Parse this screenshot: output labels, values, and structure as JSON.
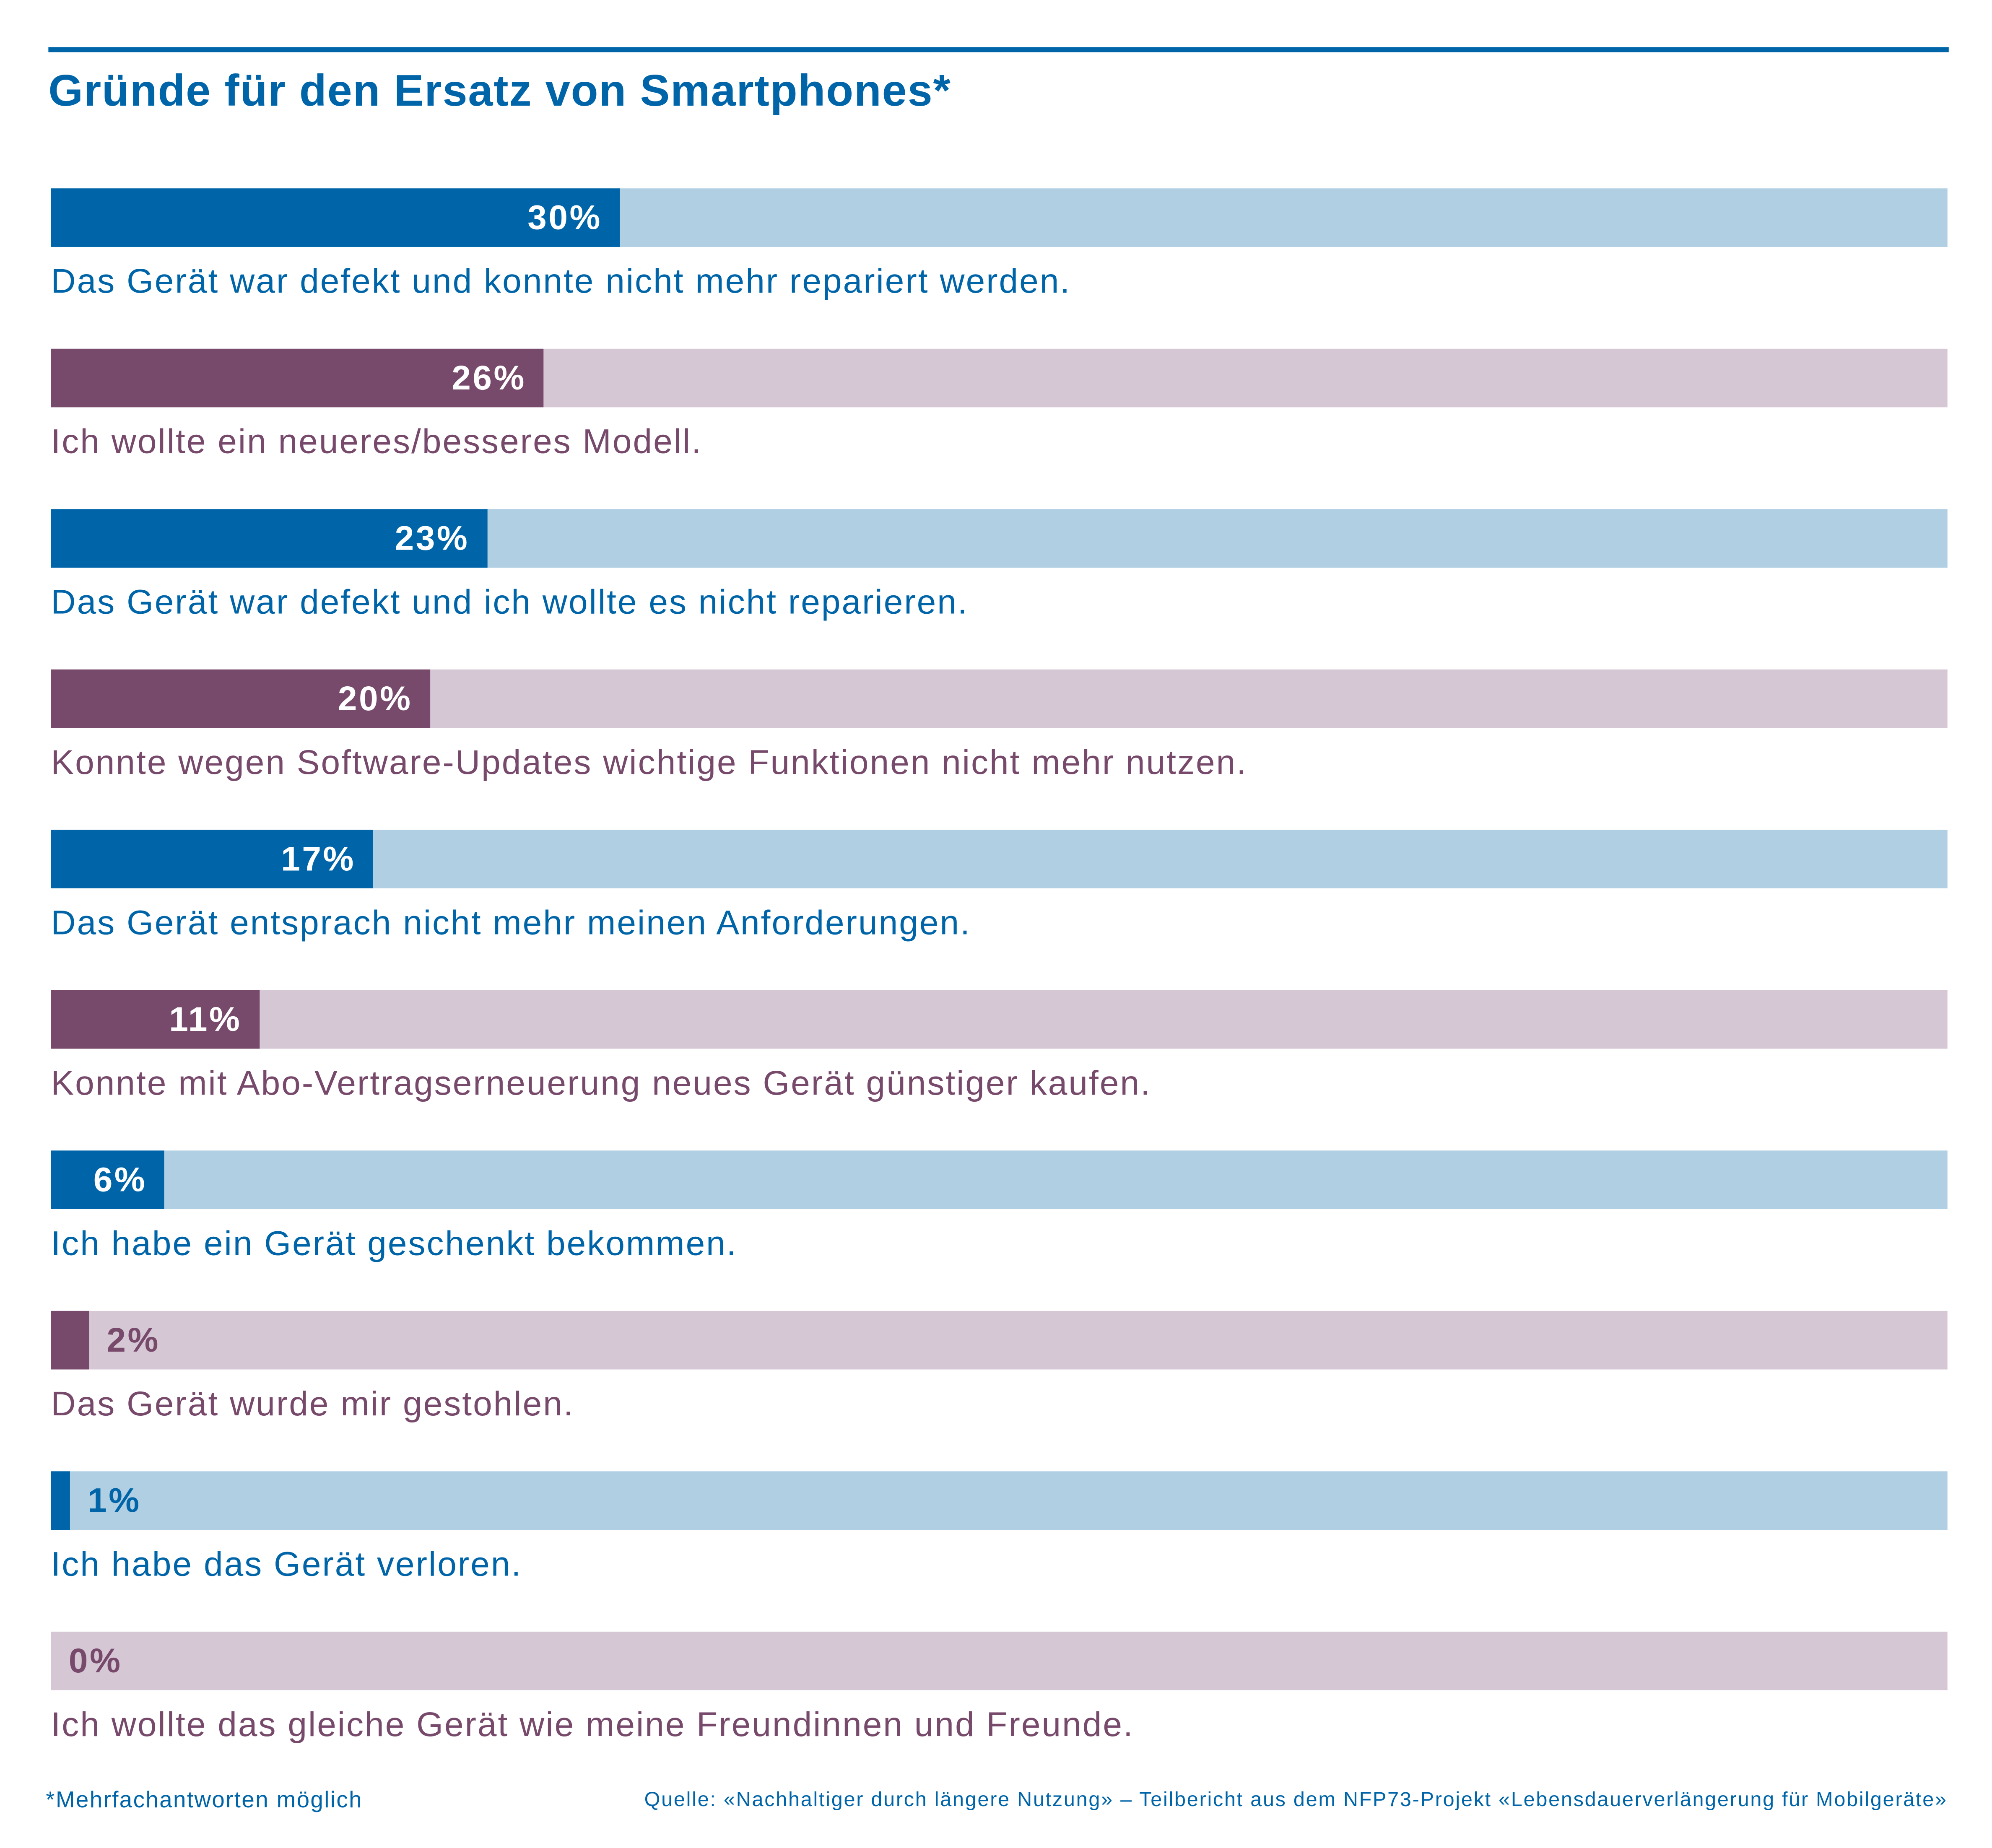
{
  "chart_data": {
    "type": "bar",
    "orientation": "horizontal",
    "title": "Gründe für den Ersatz von Smartphones*",
    "xlim": [
      0,
      100
    ],
    "grid": false,
    "categories": [
      "Das Gerät war defekt und konnte nicht mehr repariert werden.",
      "Ich wollte ein neueres/besseres Modell.",
      "Das Gerät war defekt und ich wollte es nicht reparieren.",
      "Konnte wegen Software-Updates wichtige Funktionen nicht mehr nutzen.",
      "Das Gerät entsprach nicht mehr meinen Anforderungen.",
      "Konnte mit Abo-Vertragserneuerung neues Gerät günstiger kaufen.",
      "Ich habe ein Gerät geschenkt bekommen.",
      "Das Gerät wurde mir gestohlen.",
      "Ich habe das Gerät verloren.",
      "Ich wollte das gleiche Gerät wie meine Freundinnen und Freunde."
    ],
    "values": [
      30,
      26,
      23,
      20,
      17,
      11,
      6,
      2,
      1,
      0
    ],
    "value_labels": [
      "30%",
      "26%",
      "23%",
      "20%",
      "17%",
      "11%",
      "6%",
      "2%",
      "1%",
      "0%"
    ],
    "unit": "%"
  },
  "colors": {
    "blue": "#0065a8",
    "blue_light": "#b1cfe3",
    "purple": "#77496b",
    "purple_light": "#d6c7d5"
  },
  "footer": {
    "note": "*Mehrfachantworten möglich",
    "source": "Quelle: «Nachhaltiger durch längere Nutzung» – Teilbericht aus dem NFP73-Projekt «Lebensdauerverlängerung für Mobilgeräte»"
  }
}
